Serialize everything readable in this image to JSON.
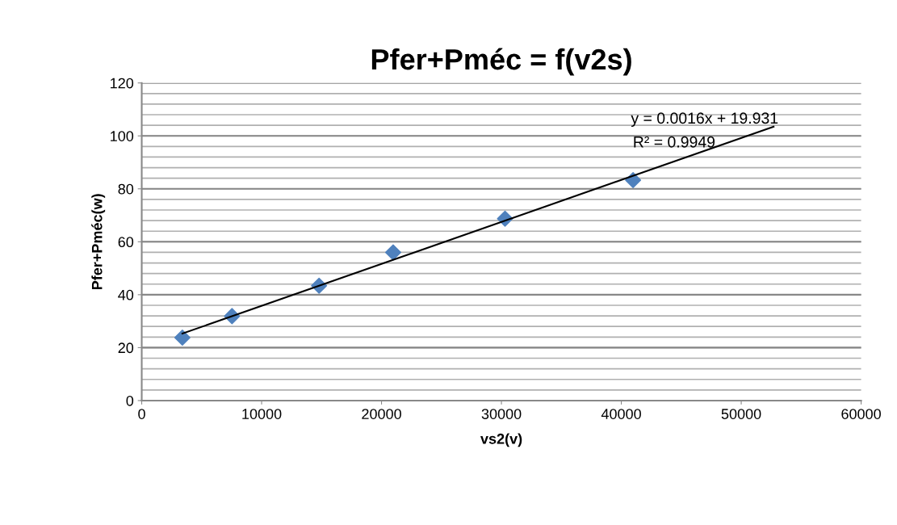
{
  "chart_data": {
    "type": "scatter",
    "title": "Pfer+Pméc = f(v2s)",
    "xlabel": "vs2(v)",
    "ylabel": "Pfer+Pméc(w)",
    "series": [
      {
        "color": "#4f81bd",
        "marker": "diamond",
        "x": [
          3390,
          7530,
          14790,
          20970,
          30300,
          40980
        ],
        "values": [
          23.8,
          31.9,
          43.4,
          56.0,
          68.7,
          83.3
        ]
      },
      {
        "type": "line",
        "color": "#000000",
        "marker": "none",
        "x": [
          3390,
          52700
        ],
        "values": [
          25.3,
          103.5
        ]
      }
    ],
    "annotations": [
      "y = 0.0016x + 19.931",
      "R² = 0.9949"
    ],
    "xlim": [
      0,
      60000
    ],
    "xticks": [
      0,
      10000,
      20000,
      30000,
      40000,
      50000,
      60000
    ],
    "ylim": [
      0,
      120
    ],
    "yticks": [
      0,
      20,
      40,
      60,
      80,
      100,
      120
    ],
    "grid": "y",
    "legend": false
  }
}
